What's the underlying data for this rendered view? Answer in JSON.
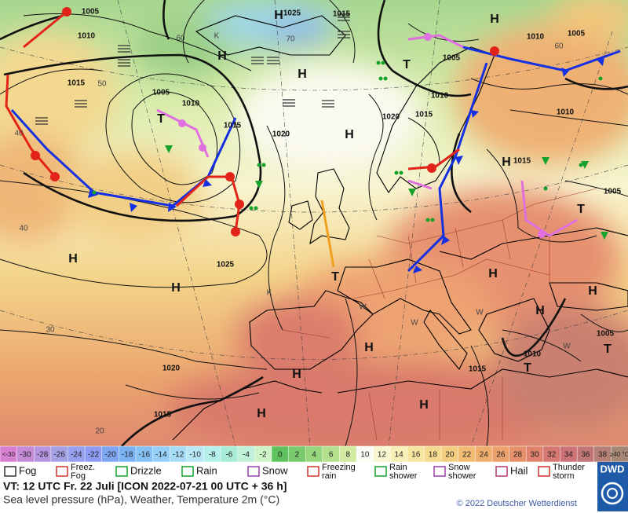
{
  "map": {
    "pressure_centers": [
      "H",
      "H",
      "H",
      "H",
      "H",
      "H",
      "H",
      "H",
      "H",
      "H",
      "H",
      "H",
      "H",
      "H",
      "H",
      "T",
      "T",
      "T",
      "T",
      "T",
      "T"
    ],
    "isobar_labels": [
      "1005",
      "1005",
      "1010",
      "1015",
      "1010",
      "1015",
      "1020",
      "1020",
      "1015",
      "1010",
      "1005",
      "1010",
      "1005",
      "1010",
      "1015",
      "1005",
      "1025",
      "1020",
      "1015",
      "1015",
      "1010",
      "1005",
      "1015",
      "1025"
    ],
    "temperature_labels": [
      "60",
      "50",
      "40",
      "40",
      "30",
      "20",
      "70",
      "60",
      "K",
      "K",
      "W",
      "W",
      "W",
      "W"
    ]
  },
  "colorbar": {
    "labels": [
      "<-30",
      "-30",
      "-28",
      "-26",
      "-24",
      "-22",
      "-20",
      "-18",
      "-16",
      "-14",
      "-12",
      "-10",
      "-8",
      "-6",
      "-4",
      "-2",
      "0",
      "2",
      "4",
      "6",
      "8",
      "10",
      "12",
      "14",
      "16",
      "18",
      "20",
      "22",
      "24",
      "26",
      "28",
      "30",
      "32",
      "34",
      "36",
      "38",
      "≥40 °C"
    ],
    "colors": [
      "#d77fd0",
      "#c58ad8",
      "#b595e0",
      "#a59fe6",
      "#979ff0",
      "#8d9cf2",
      "#7fa6f2",
      "#79b3f4",
      "#86c1f6",
      "#95cff8",
      "#a6dcf8",
      "#b8e8f6",
      "#b4f0ea",
      "#a8ecd8",
      "#bff0d8",
      "#cff3c8",
      "#5fc25f",
      "#78ca6c",
      "#96d67c",
      "#b4e08e",
      "#d2eaa2",
      "#fbfbf3",
      "#f8f7d2",
      "#f7f0b6",
      "#f6e6a0",
      "#f5db90",
      "#f4cd80",
      "#f2bd72",
      "#efae6e",
      "#eca06c",
      "#e6916c",
      "#df836e",
      "#d77772",
      "#cd7276",
      "#c27676",
      "#b68074",
      "#a58774"
    ]
  },
  "legend": [
    {
      "lines": [
        "Fog"
      ]
    },
    {
      "lines": [
        "Freez.",
        "Fog"
      ]
    },
    {
      "lines": [
        "Drizzle"
      ]
    },
    {
      "lines": [
        "Rain"
      ]
    },
    {
      "lines": [
        "Snow"
      ]
    },
    {
      "lines": [
        "Freezing",
        "rain"
      ]
    },
    {
      "lines": [
        "Rain",
        "shower"
      ]
    },
    {
      "lines": [
        "Snow",
        "shower"
      ]
    },
    {
      "lines": [
        "Hail"
      ]
    },
    {
      "lines": [
        "Thunder",
        "storm"
      ]
    }
  ],
  "footer": {
    "valid_time": "VT: 12 UTC Fr.  22 Juli [ICON 2022-07-21  00 UTC + 36 h]",
    "description": "Sea level pressure (hPa), Weather, Temperature 2m (°C)",
    "copyright": "© 2022 Deutscher Wetterdienst",
    "logo": "DWD"
  }
}
